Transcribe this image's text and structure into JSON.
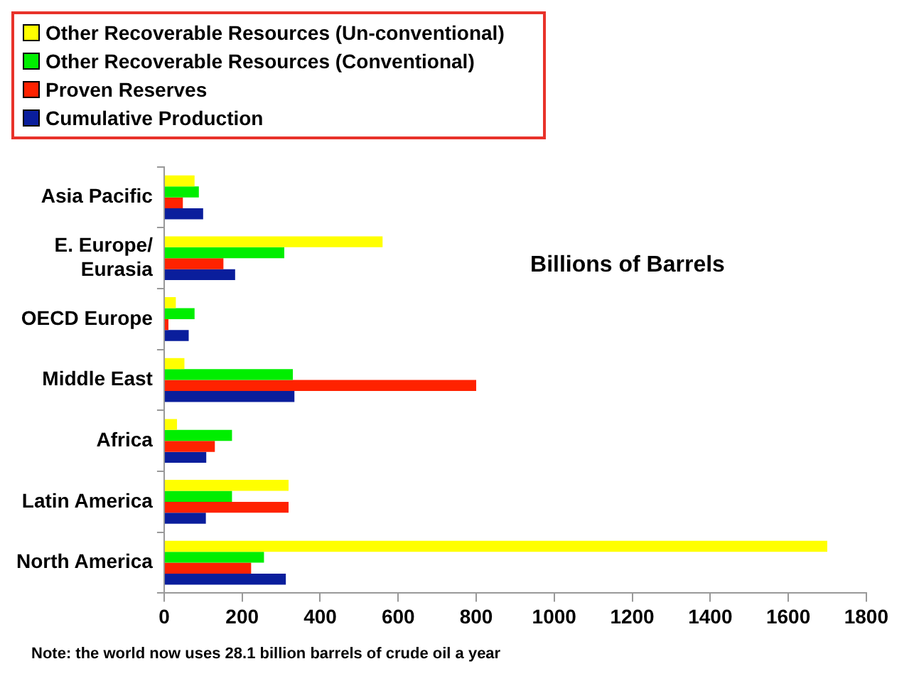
{
  "chart_data": {
    "type": "bar",
    "orientation": "horizontal",
    "categories": [
      "Asia Pacific",
      "E. Europe/ Eurasia",
      "OECD Europe",
      "Middle East",
      "Africa",
      "Latin America",
      "North America"
    ],
    "series": [
      {
        "name": "Other Recoverable Resources (Un-conventional)",
        "color": "#ffff00",
        "values": [
          78,
          560,
          30,
          52,
          33,
          319,
          1700
        ]
      },
      {
        "name": "Other Recoverable Resources (Conventional)",
        "color": "#00ee00",
        "values": [
          89,
          308,
          78,
          330,
          174,
          174,
          256
        ]
      },
      {
        "name": "Proven Reserves",
        "color": "#ff2200",
        "values": [
          48,
          152,
          11,
          800,
          130,
          319,
          223
        ]
      },
      {
        "name": "Cumulative Production",
        "color": "#0a1e9c",
        "values": [
          100,
          182,
          63,
          334,
          108,
          107,
          312
        ]
      }
    ],
    "xlim": [
      0,
      1800
    ],
    "xticks": [
      0,
      200,
      400,
      600,
      800,
      1000,
      1200,
      1400,
      1600,
      1800
    ],
    "grid": false,
    "legend": "top",
    "annotations": [
      "Billions of Barrels",
      "Note: the world now uses 28.1 billion barrels of crude oil a year"
    ]
  }
}
